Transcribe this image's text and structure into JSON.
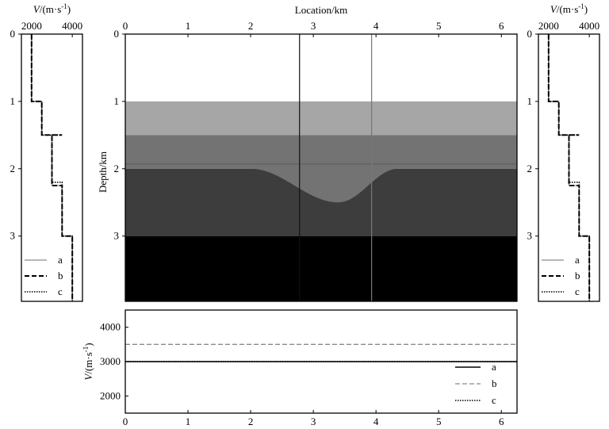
{
  "chart_data": [
    {
      "panel": "left-velocity-profile",
      "type": "line",
      "top_axis_label_italic": "V",
      "top_axis_label_rest": "/(m·s",
      "top_axis_label_sup": "-1",
      "top_axis_label_close": ")",
      "x_ticks": [
        "2000",
        "4000"
      ],
      "xlim": [
        1500,
        4500
      ],
      "y_ticks": [
        "0",
        "1",
        "2",
        "3"
      ],
      "ylim": [
        0,
        3.97
      ],
      "legend_position": "bottom-right",
      "series": [
        {
          "name": "a",
          "style": "solid-gray",
          "x": [
            2000,
            2000,
            2500,
            2500,
            3000,
            3000,
            3500,
            3500,
            4000,
            4000
          ],
          "y": [
            0,
            1,
            1,
            1.5,
            1.5,
            2.25,
            2.25,
            3,
            3,
            3.97
          ]
        },
        {
          "name": "b",
          "style": "dashed-black",
          "x": [
            2000,
            2000,
            2500,
            2500,
            3500,
            3500,
            3000,
            3000,
            3500,
            3500,
            4000,
            4000
          ],
          "y": [
            0,
            1,
            1,
            1.5,
            1.5,
            1.5,
            1.5,
            2.25,
            2.25,
            3,
            3,
            3.97
          ]
        },
        {
          "name": "c",
          "style": "dotted-black",
          "x": [
            2000,
            2000,
            2500,
            2500,
            3000,
            3000,
            3500,
            3500,
            4000,
            4000
          ],
          "y": [
            0,
            1,
            1,
            1.5,
            1.5,
            2.2,
            2.2,
            3,
            3,
            3.97
          ]
        }
      ]
    },
    {
      "panel": "main-velocity-model",
      "type": "heatmap",
      "x_axis_label": "Location/km",
      "y_axis_label": "Depth/km",
      "x_ticks": [
        "0",
        "1",
        "2",
        "3",
        "4",
        "5",
        "6"
      ],
      "xlim": [
        0,
        6.25
      ],
      "y_ticks": [
        "0",
        "1",
        "2",
        "3"
      ],
      "ylim": [
        0,
        3.97
      ],
      "layers": [
        {
          "velocity": 2000,
          "top": 0,
          "bottom": 1,
          "color": "#ffffff"
        },
        {
          "velocity": 2500,
          "top": 1,
          "bottom": 1.5,
          "color": "#a6a6a6"
        },
        {
          "velocity": 3000,
          "top": 1.5,
          "bottom": 2.0,
          "color": "#737373"
        },
        {
          "velocity": 3500,
          "top": 2.0,
          "bottom": 3.0,
          "color": "#3d3d3d"
        },
        {
          "velocity": 4000,
          "top": 3.0,
          "bottom": 3.97,
          "color": "#000000"
        }
      ],
      "anomaly": {
        "x_start": 2.0,
        "x_end": 4.35,
        "center": 3.4,
        "max_depth": 2.5,
        "fill_color": "#737373"
      },
      "interface_lines": [
        {
          "depth": 1.93,
          "color": "#5a5a5a"
        }
      ],
      "profile_lines": [
        {
          "x": 2.78,
          "color": "#111111"
        },
        {
          "x": 3.93,
          "color": "#777777"
        }
      ]
    },
    {
      "panel": "right-velocity-profile",
      "type": "line",
      "top_axis_label_italic": "V",
      "top_axis_label_rest": "/(m·s",
      "top_axis_label_sup": "-1",
      "top_axis_label_close": ")",
      "x_ticks": [
        "2000",
        "4000"
      ],
      "xlim": [
        1500,
        4500
      ],
      "y_ticks": [
        "0",
        "1",
        "2",
        "3"
      ],
      "ylim": [
        0,
        3.97
      ],
      "legend_position": "bottom-right",
      "series": [
        {
          "name": "a",
          "style": "solid-gray",
          "x": [
            2000,
            2000,
            2500,
            2500,
            3000,
            3000,
            3500,
            3500,
            4000,
            4000
          ],
          "y": [
            0,
            1,
            1,
            1.5,
            1.5,
            2.25,
            2.25,
            3,
            3,
            3.97
          ]
        },
        {
          "name": "b",
          "style": "dashed-black",
          "x": [
            2000,
            2000,
            2500,
            2500,
            3500,
            3500,
            3000,
            3000,
            3500,
            3500,
            4000,
            4000
          ],
          "y": [
            0,
            1,
            1,
            1.5,
            1.5,
            1.5,
            1.5,
            2.25,
            2.25,
            3,
            3,
            3.97
          ]
        },
        {
          "name": "c",
          "style": "dotted-black",
          "x": [
            2000,
            2000,
            2500,
            2500,
            3000,
            3000,
            3500,
            3500,
            4000,
            4000
          ],
          "y": [
            0,
            1,
            1,
            1.5,
            1.5,
            2.2,
            2.2,
            3,
            3,
            3.97
          ]
        }
      ]
    },
    {
      "panel": "bottom-velocity-along-interface",
      "type": "line",
      "y_axis_label_italic": "V",
      "y_axis_label_rest": "/(m·s",
      "y_axis_label_sup": "-1",
      "y_axis_label_close": ")",
      "x_ticks": [
        "0",
        "1",
        "2",
        "3",
        "4",
        "5",
        "6"
      ],
      "xlim": [
        0,
        6.25
      ],
      "y_ticks": [
        "2000",
        "3000",
        "4000"
      ],
      "ylim": [
        1500,
        4500
      ],
      "legend_position": "bottom-right",
      "series": [
        {
          "name": "a",
          "style": "solid-black",
          "x": [
            0,
            6.25
          ],
          "y": [
            3000,
            3000
          ]
        },
        {
          "name": "b",
          "style": "dashed-gray",
          "x": [
            0,
            6.25
          ],
          "y": [
            3500,
            3500
          ]
        },
        {
          "name": "c",
          "style": "dotted-black",
          "x": [
            0,
            6.25
          ],
          "y": [
            3000,
            3000
          ]
        }
      ]
    }
  ]
}
